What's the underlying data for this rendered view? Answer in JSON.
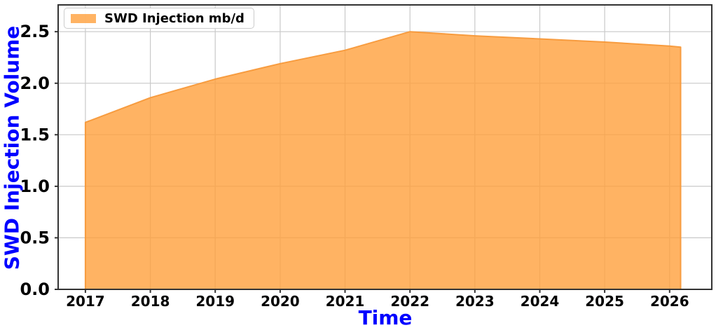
{
  "chart_data": {
    "type": "area",
    "title": "",
    "xlabel": "Time",
    "ylabel": "SWD Injection Volume",
    "x": [
      2017,
      2018,
      2019,
      2020,
      2021,
      2022,
      2023,
      2024,
      2025,
      2026,
      2026.17
    ],
    "series": [
      {
        "name": "SWD Injection mb/d",
        "values": [
          1.62,
          1.86,
          2.04,
          2.19,
          2.32,
          2.5,
          2.46,
          2.43,
          2.4,
          2.36,
          2.35
        ]
      }
    ],
    "xtick_values": [
      2017,
      2018,
      2019,
      2020,
      2021,
      2022,
      2023,
      2024,
      2025,
      2026
    ],
    "xtick_labels": [
      "2017",
      "2018",
      "2019",
      "2020",
      "2021",
      "2022",
      "2023",
      "2024",
      "2025",
      "2026"
    ],
    "ytick_values": [
      0,
      0.5,
      1.0,
      1.5,
      2.0,
      2.5
    ],
    "ytick_labels": [
      "0.0",
      "0.5",
      "1.0",
      "1.5",
      "2.0",
      "2.5"
    ],
    "xlim": [
      2016.58,
      2026.65
    ],
    "ylim": [
      0,
      2.76
    ],
    "grid": true,
    "legend": {
      "position": "upper-left",
      "entries": [
        "SWD Injection mb/d"
      ]
    },
    "colors": {
      "fill": "rgba(255,160,60,0.8)",
      "fill_composite_hex": "#ffb363",
      "line": "rgba(247,153,58,0.95)",
      "axis_label": "#0000ff",
      "tick_label": "#000000",
      "grid": "#c9c9c9",
      "spine": "#333333",
      "legend_bg": "rgba(255,255,255,0.9)",
      "legend_border": "#cccccc"
    }
  }
}
